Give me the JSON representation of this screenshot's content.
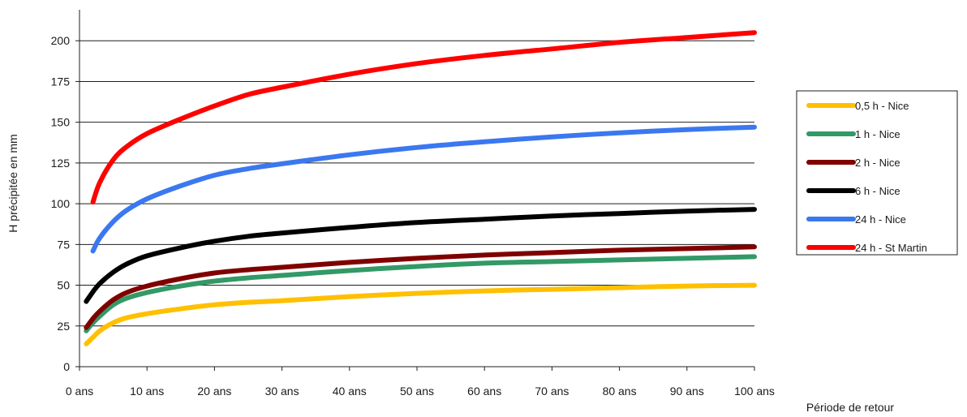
{
  "chart_data": {
    "type": "line",
    "xlabel": "Période de retour",
    "ylabel": "H précipitée en mm",
    "xlim": [
      0,
      100
    ],
    "ylim": [
      0,
      225
    ],
    "x_ticks": [
      0,
      10,
      20,
      30,
      40,
      50,
      60,
      70,
      80,
      90,
      100
    ],
    "x_tick_labels": [
      "0 ans",
      "10 ans",
      "20 ans",
      "30 ans",
      "40 ans",
      "50 ans",
      "60 ans",
      "70 ans",
      "80 ans",
      "90 ans",
      "100 ans"
    ],
    "y_ticks": [
      0,
      25,
      50,
      75,
      100,
      125,
      150,
      175,
      200
    ],
    "y_tick_labels": [
      "0",
      "25",
      "50",
      "75",
      "100",
      "125",
      "150",
      "175",
      "200"
    ],
    "grid": "horizontal",
    "legend_position": "right",
    "series": [
      {
        "name": "0,5 h - Nice",
        "color": "#ffc000",
        "x": [
          1,
          2,
          3,
          5,
          7,
          10,
          15,
          20,
          25,
          30,
          40,
          50,
          60,
          70,
          80,
          90,
          100
        ],
        "y": [
          14,
          18,
          22,
          27,
          30,
          32.5,
          35.5,
          38,
          39.5,
          40.5,
          43,
          45,
          46.5,
          47.5,
          48.5,
          49.5,
          50
        ]
      },
      {
        "name": "1 h - Nice",
        "color": "#339966",
        "x": [
          1,
          2,
          3,
          5,
          7,
          10,
          15,
          20,
          25,
          30,
          40,
          50,
          60,
          70,
          80,
          90,
          100
        ],
        "y": [
          22,
          27,
          31,
          38,
          42,
          45.5,
          49.5,
          52.5,
          54.5,
          56,
          59,
          61.5,
          63.5,
          64.5,
          65.5,
          66.5,
          67.5
        ]
      },
      {
        "name": "2 h - Nice",
        "color": "#800000",
        "x": [
          1,
          2,
          3,
          5,
          7,
          10,
          15,
          20,
          25,
          30,
          40,
          50,
          60,
          70,
          80,
          90,
          100
        ],
        "y": [
          24,
          29.5,
          34,
          41,
          45.5,
          49.5,
          54,
          57.5,
          59.5,
          61,
          64,
          66.5,
          68.5,
          70,
          71.5,
          72.5,
          73.5
        ]
      },
      {
        "name": "6 h - Nice",
        "color": "#000000",
        "x": [
          1,
          2,
          3,
          5,
          7,
          10,
          15,
          20,
          25,
          30,
          40,
          50,
          60,
          70,
          80,
          90,
          100
        ],
        "y": [
          40,
          46,
          51,
          58,
          63,
          68,
          73,
          77,
          80,
          82,
          85.5,
          88.5,
          90.5,
          92.5,
          94,
          95.5,
          96.5
        ]
      },
      {
        "name": "24 h - Nice",
        "color": "#3b78f0",
        "x": [
          2,
          3,
          5,
          7,
          10,
          15,
          20,
          25,
          30,
          40,
          50,
          60,
          70,
          80,
          90,
          100
        ],
        "y": [
          71,
          79,
          89,
          96,
          103,
          111,
          117.5,
          121.5,
          124.5,
          130,
          134.5,
          138,
          141,
          143.5,
          145.5,
          147
        ]
      },
      {
        "name": "24 h - St Martin",
        "color": "#ff0000",
        "x": [
          2,
          3,
          5,
          7,
          10,
          15,
          20,
          25,
          30,
          40,
          50,
          60,
          70,
          80,
          90,
          100
        ],
        "y": [
          101,
          113,
          127,
          135,
          143,
          152,
          160,
          167,
          171.5,
          179.5,
          186,
          191,
          195,
          199,
          202,
          205
        ]
      }
    ]
  }
}
